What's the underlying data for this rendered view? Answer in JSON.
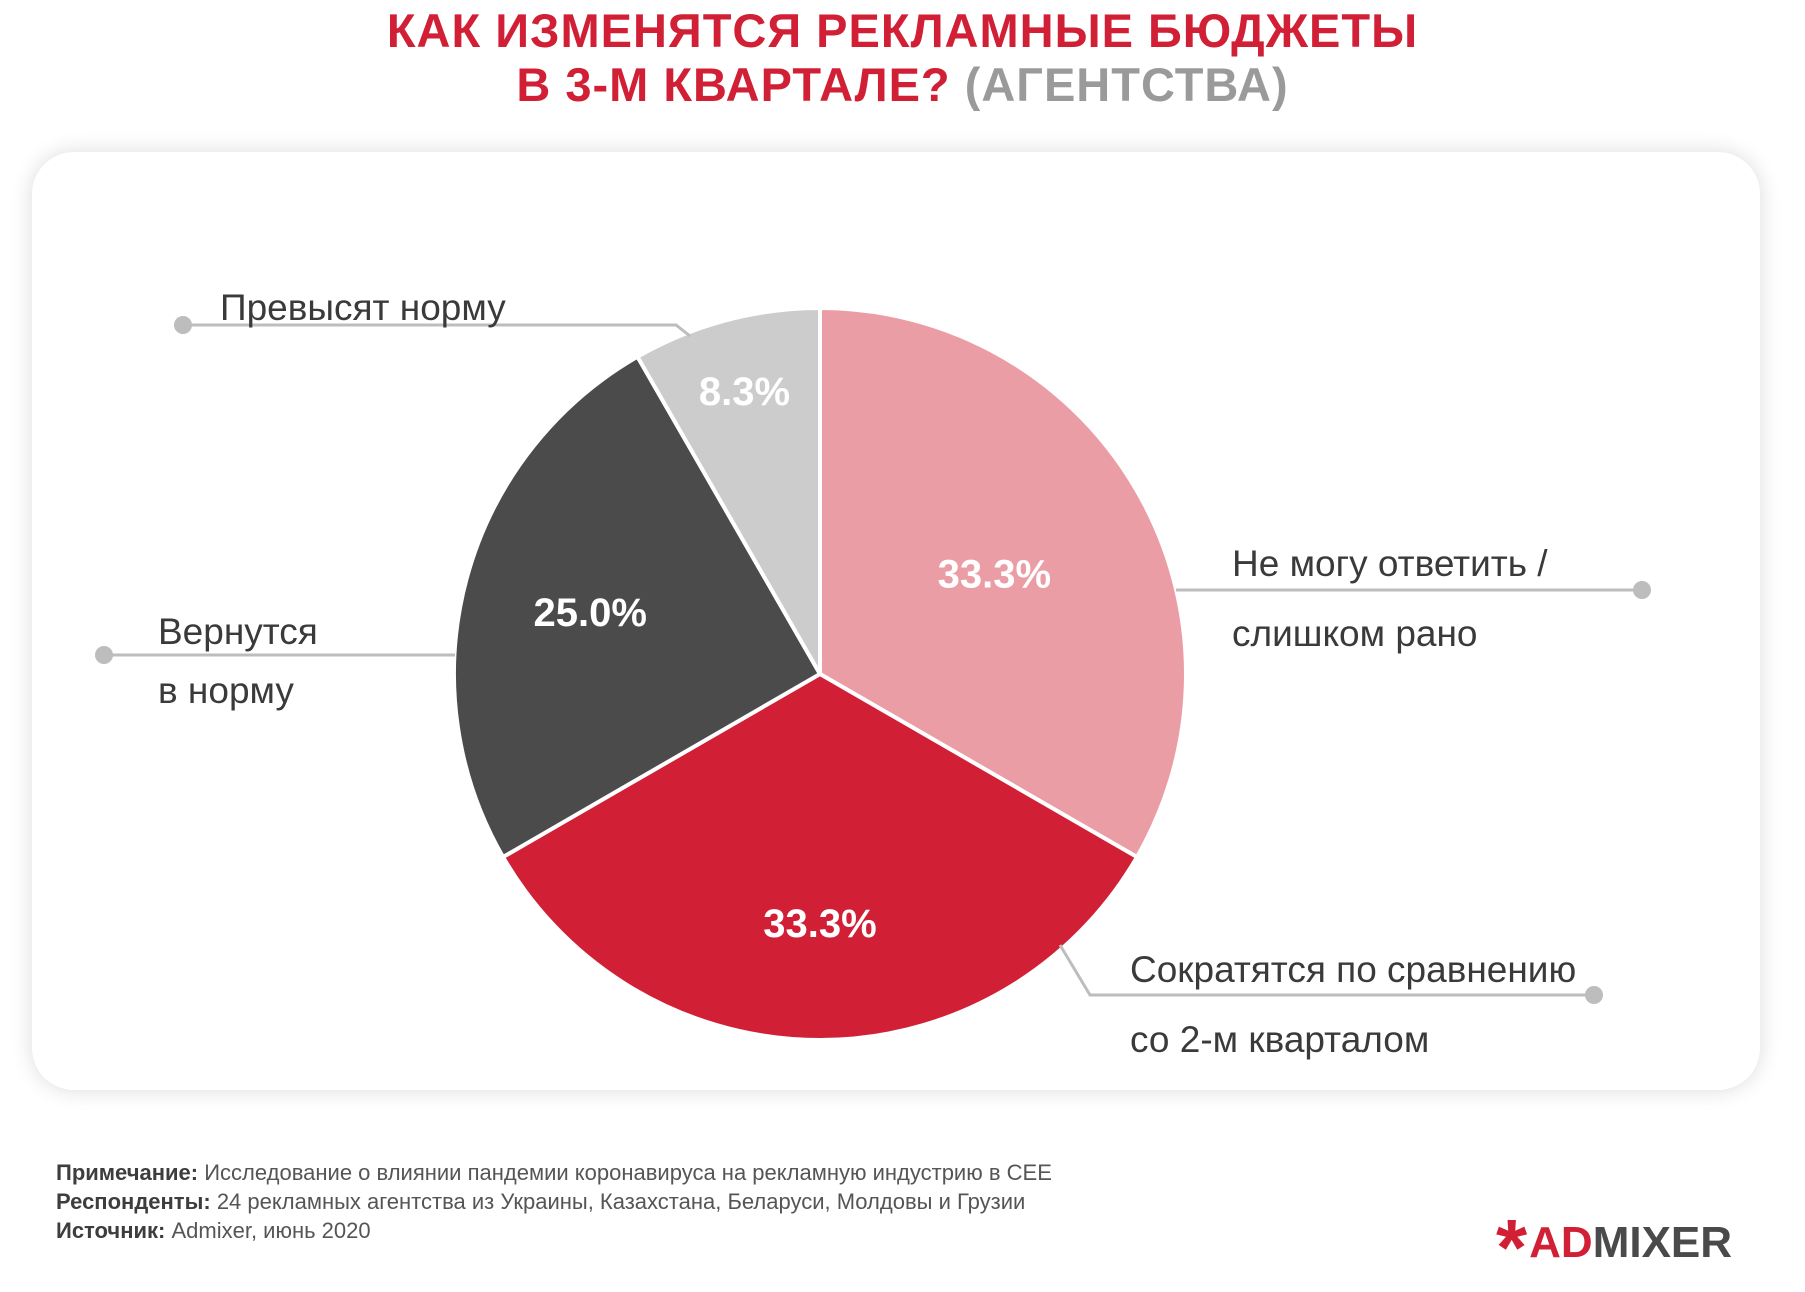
{
  "title": {
    "line1": "КАК ИЗМЕНЯТСЯ РЕКЛАМНЫЕ БЮДЖЕТЫ",
    "line2": "В 3-М КВАРТАЛЕ?",
    "line2_sub": "(АГЕНТСТВА)"
  },
  "chart_data": {
    "type": "pie",
    "categories": [
      "Не могу ответить / слишком рано",
      "Сократятся по сравнению со 2-м кварталом",
      "Вернутся в норму",
      "Превысят норму"
    ],
    "values": [
      33.3,
      33.3,
      25.0,
      8.3
    ],
    "value_labels": [
      "33.3%",
      "33.3%",
      "25.0%",
      "8.3%"
    ],
    "colors": [
      "#EB9DA6",
      "#D11F36",
      "#4B4B4B",
      "#CCCCCC"
    ],
    "label_lines": [
      [
        "Не могу ответить /",
        "слишком рано"
      ],
      [
        "Сократятся по сравнению",
        "со 2-м кварталом"
      ],
      [
        "Вернутся",
        "в норму"
      ],
      [
        "Превысят норму"
      ]
    ],
    "start_angle_deg": 0,
    "direction": "clockwise"
  },
  "footer": {
    "note_label": "Примечание:",
    "note_text": " Исследование о влиянии пандемии коронавируса на рекламную индустрию в CEE",
    "respondents_label": "Респонденты:",
    "respondents_text": " 24 рекламных агентства из Украины, Казахстана, Беларуси, Молдовы и Грузии",
    "source_label": "Источник:",
    "source_text": " Admixer, июнь 2020"
  },
  "logo": {
    "ad": "AD",
    "mixer": "MIXER"
  }
}
